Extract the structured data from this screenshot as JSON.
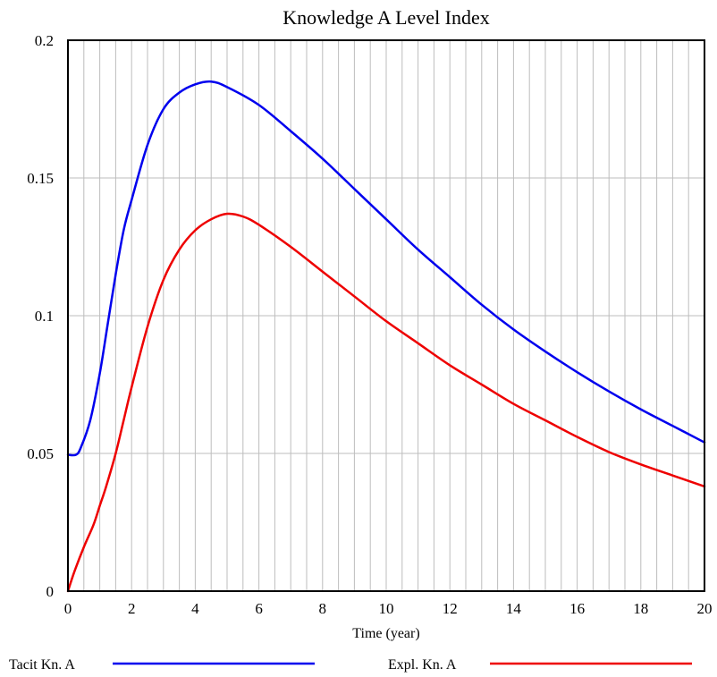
{
  "chart_data": {
    "type": "line",
    "title": "Knowledge A Level Index",
    "xlabel": "Time (year)",
    "ylabel": "",
    "xlim": [
      0,
      20
    ],
    "ylim": [
      0,
      0.2
    ],
    "x_ticks": [
      0,
      2,
      4,
      6,
      8,
      10,
      12,
      14,
      16,
      18,
      20
    ],
    "x_tick_labels": [
      "0",
      "2",
      "4",
      "6",
      "8",
      "10",
      "12",
      "14",
      "16",
      "18",
      "20"
    ],
    "y_ticks": [
      0,
      0.05,
      0.1,
      0.15,
      0.2
    ],
    "y_tick_labels": [
      "0",
      "0.05",
      "0.1",
      "0.15",
      "0.2"
    ],
    "grid": true,
    "grid_x_step": 0.5,
    "grid_y_step": 0.05,
    "legend_position": "bottom",
    "series": [
      {
        "name": "Tacit Kn. A",
        "color": "#0000ee",
        "x": [
          0,
          0.25,
          0.4,
          0.7,
          1.0,
          1.25,
          1.5,
          1.75,
          2.0,
          2.5,
          3.0,
          3.5,
          4.0,
          4.5,
          5.0,
          6.0,
          7.0,
          8.0,
          9.0,
          10.0,
          11.0,
          12.0,
          13.0,
          14.0,
          15.0,
          16.0,
          17.0,
          18.0,
          19.0,
          20.0
        ],
        "y": [
          0.0495,
          0.0495,
          0.052,
          0.062,
          0.079,
          0.097,
          0.115,
          0.131,
          0.142,
          0.162,
          0.175,
          0.181,
          0.184,
          0.185,
          0.183,
          0.1765,
          0.167,
          0.157,
          0.146,
          0.135,
          0.124,
          0.114,
          0.104,
          0.095,
          0.087,
          0.0795,
          0.0725,
          0.066,
          0.06,
          0.054
        ]
      },
      {
        "name": "Expl. Kn. A",
        "color": "#ee0000",
        "x": [
          0,
          0.2,
          0.5,
          0.8,
          1.0,
          1.2,
          1.5,
          1.75,
          2.0,
          2.5,
          3.0,
          3.5,
          4.0,
          4.5,
          5.0,
          5.5,
          6.0,
          7.0,
          8.0,
          9.0,
          10.0,
          11.0,
          12.0,
          13.0,
          14.0,
          15.0,
          16.0,
          17.0,
          18.0,
          19.0,
          20.0
        ],
        "y": [
          0.0,
          0.007,
          0.016,
          0.024,
          0.031,
          0.038,
          0.05,
          0.062,
          0.074,
          0.096,
          0.113,
          0.124,
          0.131,
          0.135,
          0.137,
          0.136,
          0.133,
          0.125,
          0.116,
          0.107,
          0.098,
          0.09,
          0.082,
          0.075,
          0.068,
          0.062,
          0.056,
          0.0505,
          0.046,
          0.042,
          0.038
        ]
      }
    ]
  }
}
